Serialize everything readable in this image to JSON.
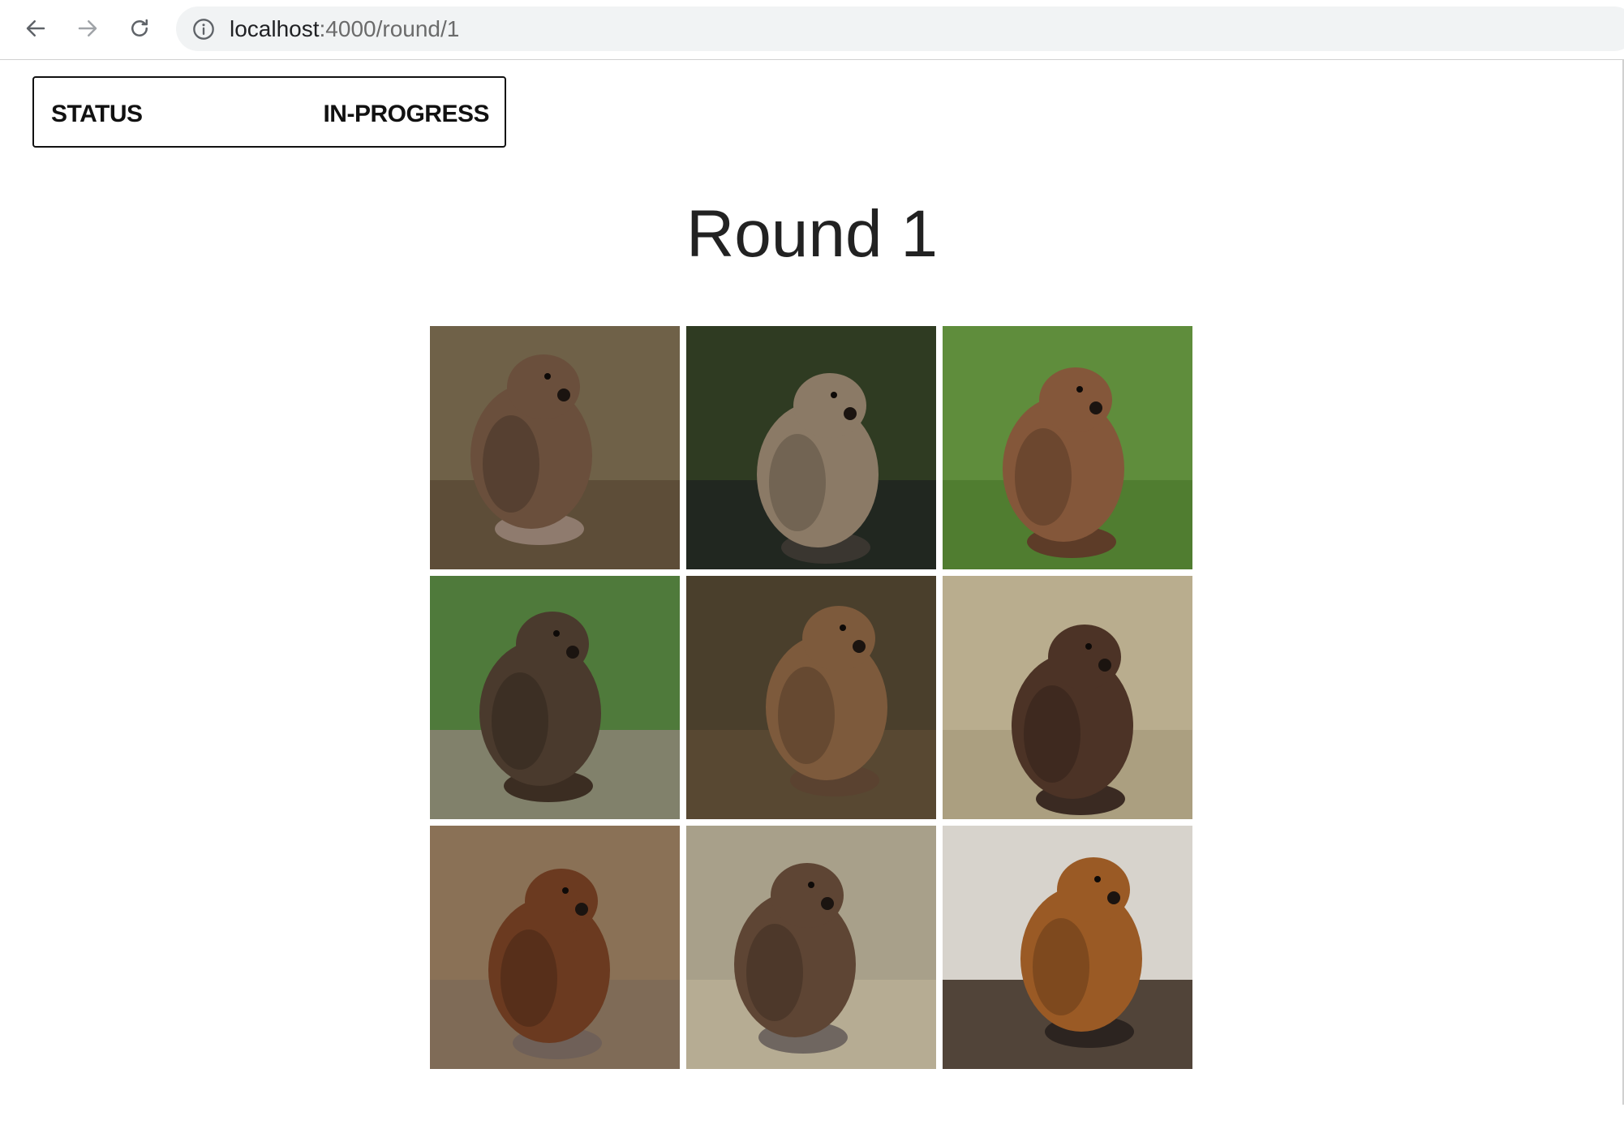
{
  "browser": {
    "url_host": "localhost",
    "url_path": ":4000/round/1",
    "back_icon": "arrow-left-icon",
    "forward_icon": "arrow-right-icon",
    "reload_icon": "reload-icon",
    "info_icon": "info-icon"
  },
  "status": {
    "label": "STATUS",
    "value": "IN-PROGRESS"
  },
  "round": {
    "title": "Round 1"
  },
  "tiles": [
    {
      "subject": "beaver",
      "bg": "#6f6148",
      "ground": "#5a4a36",
      "body": "#6a4f3c",
      "tail": "#8f7b6e"
    },
    {
      "subject": "beaver",
      "bg": "#2f3b22",
      "ground": "#1e2420",
      "body": "#8b7a66",
      "tail": "#3a3630"
    },
    {
      "subject": "beaver",
      "bg": "#5f8d3c",
      "ground": "#4e7a2e",
      "body": "#84573a",
      "tail": "#5d3c28"
    },
    {
      "subject": "beaver",
      "bg": "#4f7a3b",
      "ground": "#8a8274",
      "body": "#4a3a2d",
      "tail": "#3b2d22"
    },
    {
      "subject": "beaver",
      "bg": "#4a3f2c",
      "ground": "#5a4a34",
      "body": "#7d5a3c",
      "tail": "#5a4230"
    },
    {
      "subject": "beaver",
      "bg": "#b9ad8e",
      "ground": "#a89c7e",
      "body": "#4c3326",
      "tail": "#3a2a22"
    },
    {
      "subject": "beaver",
      "bg": "#8a7156",
      "ground": "#7d6a57",
      "body": "#6b3a20",
      "tail": "#6f6058"
    },
    {
      "subject": "beaver",
      "bg": "#a8a08a",
      "ground": "#b8ae94",
      "body": "#5e4534",
      "tail": "#6f6660"
    },
    {
      "subject": "beaver",
      "bg": "#d7d3cc",
      "ground": "#3a2a1e",
      "body": "#9a5a25",
      "tail": "#2c2420"
    }
  ]
}
